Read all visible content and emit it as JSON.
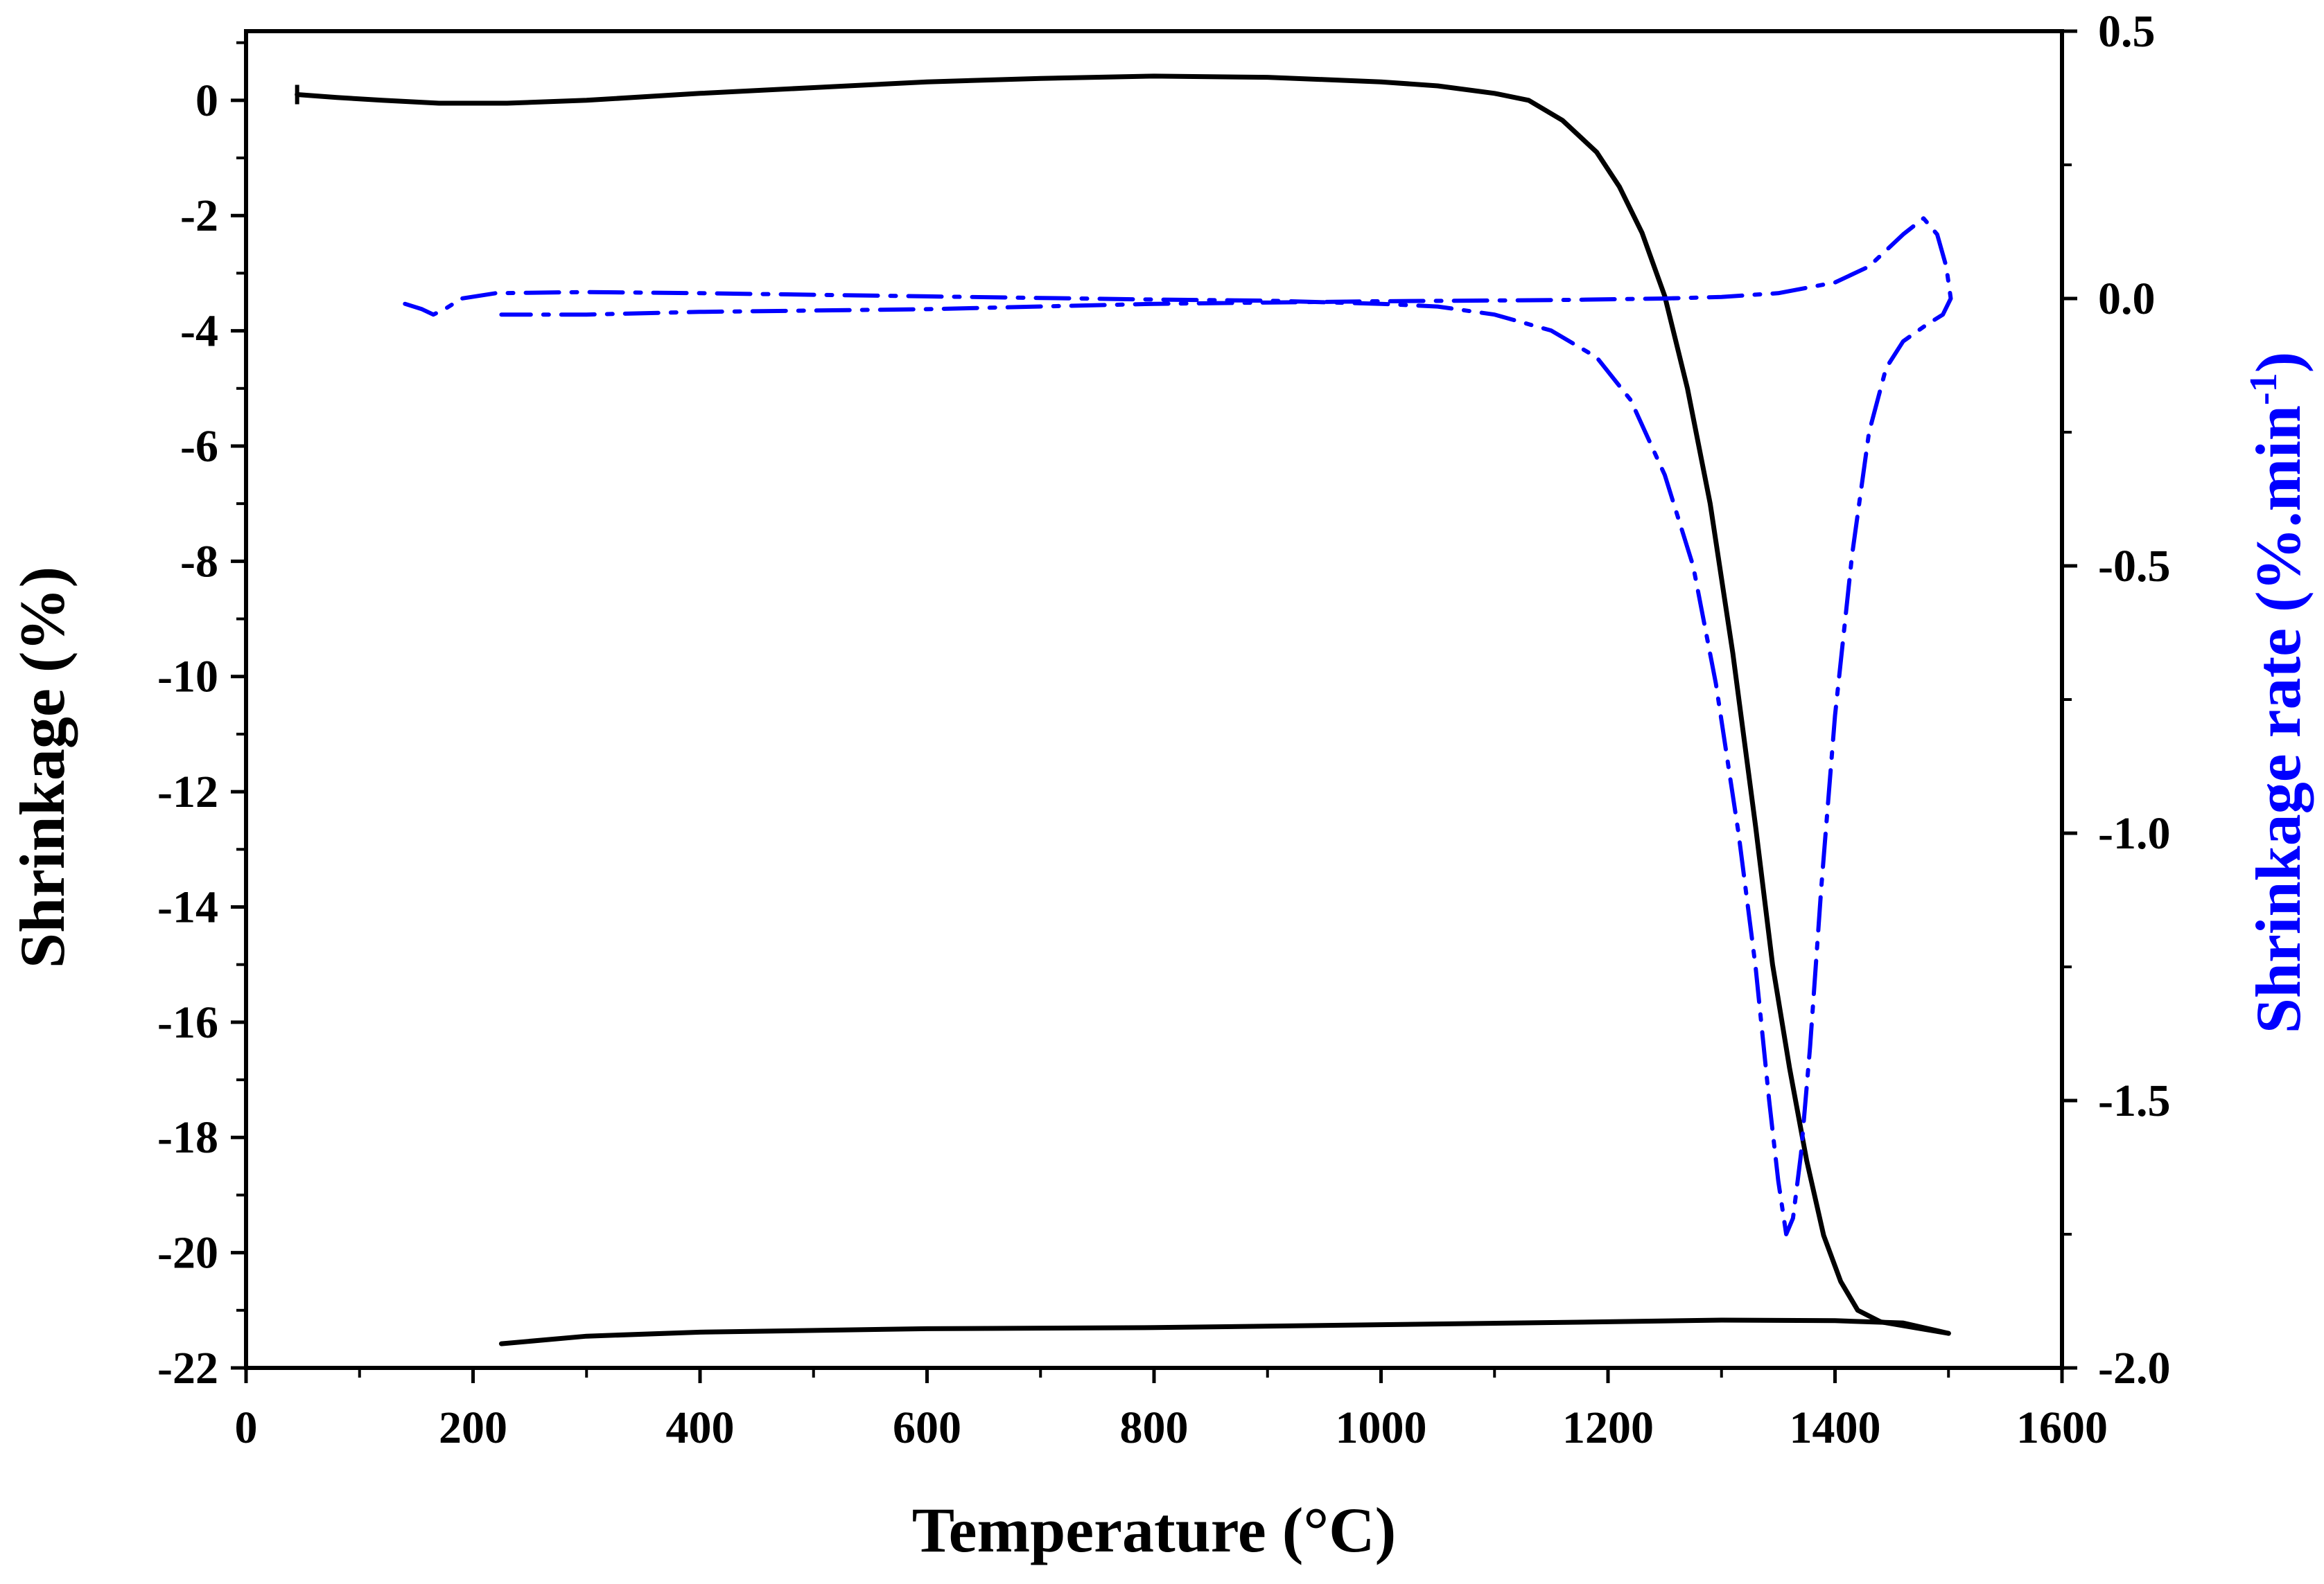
{
  "chart_data": {
    "type": "line",
    "title": "",
    "xlabel": "Temperature (°C)",
    "ylabel_left": "Shrinkage (%)",
    "ylabel_right_main": "Shrinkage rate (%.min",
    "ylabel_right_sup": "-1",
    "ylabel_right_close": ")",
    "xlim": [
      0,
      1600
    ],
    "ylim_left": [
      -22,
      1.2
    ],
    "ylim_right": [
      -2.0,
      0.5
    ],
    "x_ticks": [
      0,
      200,
      400,
      600,
      800,
      1000,
      1200,
      1400,
      1600
    ],
    "x_tick_labels": [
      "0",
      "200",
      "400",
      "600",
      "800",
      "1000",
      "1200",
      "1400",
      "1600"
    ],
    "y_left_ticks": [
      0,
      -2,
      -4,
      -6,
      -8,
      -10,
      -12,
      -14,
      -16,
      -18,
      -20,
      -22
    ],
    "y_left_tick_labels": [
      "0",
      "-2",
      "-4",
      "-6",
      "-8",
      "-10",
      "-12",
      "-14",
      "-16",
      "-18",
      "-20",
      "-22"
    ],
    "y_right_ticks": [
      0.5,
      0.0,
      -0.5,
      -1.0,
      -1.5,
      -2.0
    ],
    "y_right_tick_labels": [
      "0.5",
      "0.0",
      "-0.5",
      "-1.0",
      "-1.5",
      "-2.0"
    ],
    "colors": {
      "shrinkage": "#000000",
      "rate": "#0000ff",
      "axis": "#000000"
    },
    "series": [
      {
        "name": "Shrinkage",
        "axis": "left",
        "style": "solid",
        "color": "#000000",
        "points": [
          [
            45,
            0.1
          ],
          [
            80,
            0.05
          ],
          [
            120,
            0
          ],
          [
            170,
            -0.05
          ],
          [
            230,
            -0.05
          ],
          [
            300,
            0.0
          ],
          [
            400,
            0.12
          ],
          [
            500,
            0.22
          ],
          [
            600,
            0.32
          ],
          [
            700,
            0.38
          ],
          [
            800,
            0.42
          ],
          [
            900,
            0.4
          ],
          [
            950,
            0.36
          ],
          [
            1000,
            0.32
          ],
          [
            1050,
            0.25
          ],
          [
            1100,
            0.12
          ],
          [
            1130,
            0
          ],
          [
            1160,
            -0.35
          ],
          [
            1190,
            -0.9
          ],
          [
            1210,
            -1.5
          ],
          [
            1230,
            -2.3
          ],
          [
            1250,
            -3.4
          ],
          [
            1270,
            -5.0
          ],
          [
            1290,
            -7.0
          ],
          [
            1310,
            -9.6
          ],
          [
            1330,
            -12.6
          ],
          [
            1345,
            -15.0
          ],
          [
            1360,
            -16.8
          ],
          [
            1375,
            -18.4
          ],
          [
            1390,
            -19.7
          ],
          [
            1405,
            -20.5
          ],
          [
            1420,
            -21.0
          ],
          [
            1440,
            -21.2
          ],
          [
            1470,
            -21.3
          ],
          [
            1500,
            -21.4
          ]
        ],
        "cooling_points": [
          [
            1500,
            -21.4
          ],
          [
            1460,
            -21.22
          ],
          [
            1400,
            -21.18
          ],
          [
            1300,
            -21.17
          ],
          [
            1200,
            -21.2
          ],
          [
            1000,
            -21.25
          ],
          [
            800,
            -21.3
          ],
          [
            600,
            -21.32
          ],
          [
            400,
            -21.38
          ],
          [
            300,
            -21.45
          ],
          [
            225,
            -21.58
          ]
        ]
      },
      {
        "name": "Shrinkage rate",
        "axis": "right",
        "style": "dash-dot",
        "color": "#0000ff",
        "points": [
          [
            140,
            -0.01
          ],
          [
            155,
            -0.02
          ],
          [
            165,
            -0.03
          ],
          [
            175,
            -0.02
          ],
          [
            190,
            0.0
          ],
          [
            220,
            0.01
          ],
          [
            300,
            0.012
          ],
          [
            400,
            0.01
          ],
          [
            500,
            0.007
          ],
          [
            600,
            0.004
          ],
          [
            700,
            0.001
          ],
          [
            800,
            -0.002
          ],
          [
            900,
            -0.004
          ],
          [
            1000,
            -0.01
          ],
          [
            1050,
            -0.015
          ],
          [
            1100,
            -0.03
          ],
          [
            1150,
            -0.06
          ],
          [
            1190,
            -0.11
          ],
          [
            1220,
            -0.19
          ],
          [
            1250,
            -0.33
          ],
          [
            1275,
            -0.5
          ],
          [
            1295,
            -0.72
          ],
          [
            1315,
            -1.0
          ],
          [
            1330,
            -1.25
          ],
          [
            1342,
            -1.5
          ],
          [
            1350,
            -1.65
          ],
          [
            1357,
            -1.75
          ],
          [
            1363,
            -1.72
          ],
          [
            1370,
            -1.6
          ],
          [
            1378,
            -1.4
          ],
          [
            1388,
            -1.1
          ],
          [
            1400,
            -0.78
          ],
          [
            1415,
            -0.48
          ],
          [
            1430,
            -0.25
          ],
          [
            1445,
            -0.13
          ],
          [
            1460,
            -0.08
          ],
          [
            1480,
            -0.05
          ],
          [
            1495,
            -0.03
          ],
          [
            1502,
            0.0
          ],
          [
            1498,
            0.06
          ],
          [
            1490,
            0.12
          ],
          [
            1478,
            0.15
          ],
          [
            1460,
            0.12
          ],
          [
            1430,
            0.06
          ],
          [
            1400,
            0.03
          ],
          [
            1350,
            0.01
          ],
          [
            1300,
            0.003
          ],
          [
            1250,
            0.0
          ],
          [
            1150,
            -0.003
          ],
          [
            1000,
            -0.005
          ],
          [
            800,
            -0.01
          ],
          [
            600,
            -0.02
          ],
          [
            400,
            -0.025
          ],
          [
            300,
            -0.03
          ],
          [
            225,
            -0.03
          ]
        ]
      }
    ]
  }
}
